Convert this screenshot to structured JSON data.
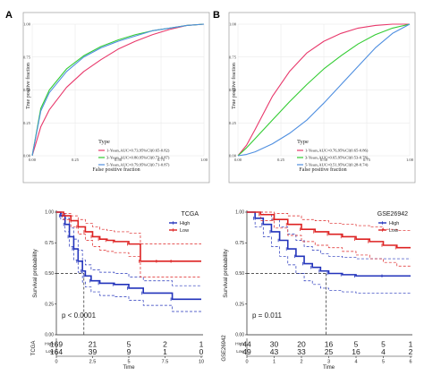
{
  "panel_labels": [
    "A",
    "B"
  ],
  "roc_axis": {
    "xlabel": "False positive fraction",
    "ylabel": "True positive fraction",
    "ticks": [
      "0.00",
      "0.25",
      "0.50",
      "0.75",
      "1.00"
    ]
  },
  "legend_title": "Type",
  "colors": {
    "year1": "#e8386b",
    "year3": "#33cc33",
    "year5": "#4f8fe0",
    "high": "#2233bb",
    "low": "#dd2222"
  },
  "km_axis": {
    "ylabel": "Survival probability",
    "xlabel": "Time",
    "yticks": [
      "0.00",
      "0.25",
      "0.50",
      "0.75",
      "1.00"
    ]
  },
  "risk_rows": [
    "High",
    "Low"
  ],
  "chart_data": [
    {
      "type": "line",
      "panel": "A",
      "xlabel": "False positive fraction",
      "ylabel": "True positive fraction",
      "xlim": [
        0,
        1
      ],
      "ylim": [
        0,
        1
      ],
      "legend_title": "Type",
      "legend_position": "bottom-right",
      "series": [
        {
          "name": "1-Years,AUC=0.73,95%CI(0.65-0.82)",
          "color": "#e8386b",
          "auc": 0.73,
          "x": [
            0,
            0.05,
            0.1,
            0.2,
            0.3,
            0.4,
            0.5,
            0.6,
            0.7,
            0.8,
            0.9,
            1
          ],
          "y": [
            0,
            0.22,
            0.35,
            0.52,
            0.64,
            0.73,
            0.81,
            0.87,
            0.92,
            0.96,
            0.99,
            1
          ]
        },
        {
          "name": "3-Years,AUC=0.80,95%CI(0.73-0.87)",
          "color": "#33cc33",
          "auc": 0.8,
          "x": [
            0,
            0.05,
            0.1,
            0.2,
            0.3,
            0.4,
            0.5,
            0.6,
            0.7,
            0.8,
            0.9,
            1
          ],
          "y": [
            0,
            0.36,
            0.5,
            0.66,
            0.76,
            0.83,
            0.88,
            0.92,
            0.95,
            0.97,
            0.99,
            1
          ]
        },
        {
          "name": "5-Years,AUC=0.79,95%CI(0.71-0.87)",
          "color": "#4f8fe0",
          "auc": 0.79,
          "x": [
            0,
            0.05,
            0.1,
            0.2,
            0.3,
            0.4,
            0.5,
            0.6,
            0.7,
            0.8,
            0.9,
            1
          ],
          "y": [
            0,
            0.34,
            0.48,
            0.64,
            0.75,
            0.82,
            0.87,
            0.91,
            0.95,
            0.97,
            0.99,
            1
          ]
        }
      ]
    },
    {
      "type": "line",
      "panel": "B",
      "xlabel": "False positive fraction",
      "ylabel": "True positive fraction",
      "xlim": [
        0,
        1
      ],
      "ylim": [
        0,
        1
      ],
      "legend_title": "Type",
      "legend_position": "bottom-right",
      "series": [
        {
          "name": "1-Years,AUC=0.76,95%CI(0.65-0.86)",
          "color": "#e8386b",
          "auc": 0.76,
          "x": [
            0,
            0.05,
            0.1,
            0.2,
            0.3,
            0.4,
            0.5,
            0.6,
            0.7,
            0.8,
            0.9,
            1
          ],
          "y": [
            0,
            0.08,
            0.2,
            0.45,
            0.64,
            0.78,
            0.87,
            0.93,
            0.97,
            0.99,
            1,
            1
          ]
        },
        {
          "name": "3-Years,AUC=0.65,95%CI(0.53-0.78)",
          "color": "#33cc33",
          "auc": 0.65,
          "x": [
            0,
            0.05,
            0.1,
            0.2,
            0.3,
            0.4,
            0.5,
            0.6,
            0.7,
            0.8,
            0.9,
            1
          ],
          "y": [
            0,
            0.06,
            0.13,
            0.27,
            0.41,
            0.54,
            0.66,
            0.76,
            0.85,
            0.92,
            0.97,
            1
          ]
        },
        {
          "name": "5-Years,AUC=0.51,95%CI(0.28-0.74)",
          "color": "#4f8fe0",
          "auc": 0.51,
          "x": [
            0,
            0.05,
            0.1,
            0.2,
            0.3,
            0.4,
            0.5,
            0.6,
            0.7,
            0.8,
            0.9,
            1
          ],
          "y": [
            0,
            0.01,
            0.03,
            0.09,
            0.17,
            0.27,
            0.4,
            0.54,
            0.68,
            0.82,
            0.93,
            1
          ]
        }
      ]
    },
    {
      "type": "line",
      "panel": "TCGA",
      "title": "TCGA",
      "xlabel": "Time",
      "ylabel": "Survival probability",
      "xlim": [
        0,
        10
      ],
      "ylim": [
        0,
        1
      ],
      "xticks": [
        "0",
        "2.5",
        "5",
        "7.5",
        "10"
      ],
      "pvalue": "p < 0.0001",
      "median_survival": 1.9,
      "legend_position": "top-right",
      "series": [
        {
          "name": "High",
          "color": "#2233bb",
          "step": true,
          "x": [
            0,
            0.3,
            0.6,
            0.9,
            1.2,
            1.5,
            1.8,
            2.0,
            2.4,
            3.0,
            4.0,
            5.0,
            6.0,
            8.0,
            10
          ],
          "y": [
            1,
            0.97,
            0.9,
            0.8,
            0.7,
            0.6,
            0.52,
            0.48,
            0.44,
            0.42,
            0.41,
            0.38,
            0.34,
            0.29,
            0.29
          ],
          "ci_upper": [
            1,
            0.99,
            0.95,
            0.87,
            0.78,
            0.69,
            0.61,
            0.57,
            0.53,
            0.51,
            0.5,
            0.47,
            0.44,
            0.4,
            0.4
          ],
          "ci_lower": [
            1,
            0.94,
            0.84,
            0.72,
            0.61,
            0.51,
            0.43,
            0.39,
            0.35,
            0.32,
            0.31,
            0.28,
            0.24,
            0.19,
            0.19
          ]
        },
        {
          "name": "Low",
          "color": "#dd2222",
          "step": true,
          "x": [
            0,
            0.5,
            1.0,
            1.5,
            2.0,
            2.5,
            3.0,
            3.5,
            4.0,
            5.0,
            5.8,
            7.0,
            8.0,
            10
          ],
          "y": [
            1,
            0.97,
            0.93,
            0.88,
            0.84,
            0.8,
            0.78,
            0.77,
            0.76,
            0.74,
            0.6,
            0.6,
            0.6,
            0.6
          ],
          "ci_upper": [
            1,
            0.99,
            0.97,
            0.94,
            0.91,
            0.88,
            0.86,
            0.85,
            0.84,
            0.83,
            0.74,
            0.74,
            0.74,
            0.74
          ],
          "ci_lower": [
            1,
            0.94,
            0.88,
            0.82,
            0.77,
            0.72,
            0.69,
            0.68,
            0.67,
            0.64,
            0.47,
            0.47,
            0.47,
            0.47
          ]
        }
      ],
      "risk_table": {
        "times": [
          "0",
          "2.5",
          "5",
          "7.5",
          "10"
        ],
        "label": "TCGA",
        "High": [
          "169",
          "21",
          "5",
          "2",
          "1"
        ],
        "Low": [
          "164",
          "39",
          "9",
          "1",
          "0"
        ]
      }
    },
    {
      "type": "line",
      "panel": "GSE26942",
      "title": "GSE26942",
      "xlabel": "Time",
      "ylabel": "Survival probability",
      "xlim": [
        0,
        6
      ],
      "ylim": [
        0,
        1
      ],
      "xticks": [
        "0",
        "1",
        "2",
        "3",
        "4",
        "5",
        "6"
      ],
      "pvalue": "p = 0.011",
      "median_survival": 2.9,
      "legend_position": "top-right",
      "series": [
        {
          "name": "High",
          "color": "#2233bb",
          "step": true,
          "x": [
            0,
            0.3,
            0.6,
            0.9,
            1.2,
            1.5,
            1.8,
            2.1,
            2.4,
            2.7,
            3.0,
            3.5,
            4.0,
            5.0,
            6.0
          ],
          "y": [
            1,
            0.95,
            0.9,
            0.84,
            0.77,
            0.7,
            0.64,
            0.58,
            0.55,
            0.52,
            0.5,
            0.49,
            0.48,
            0.48,
            0.48
          ],
          "ci_upper": [
            1,
            1,
            0.98,
            0.94,
            0.88,
            0.82,
            0.77,
            0.72,
            0.69,
            0.66,
            0.64,
            0.63,
            0.62,
            0.62,
            0.62
          ],
          "ci_lower": [
            1,
            0.88,
            0.8,
            0.72,
            0.64,
            0.57,
            0.5,
            0.44,
            0.41,
            0.38,
            0.36,
            0.35,
            0.34,
            0.34,
            0.34
          ]
        },
        {
          "name": "Low",
          "color": "#dd2222",
          "step": true,
          "x": [
            0,
            0.5,
            1.0,
            1.5,
            2.0,
            2.5,
            3.0,
            3.5,
            4.0,
            4.5,
            5.0,
            5.5,
            6.0
          ],
          "y": [
            1,
            0.98,
            0.94,
            0.9,
            0.86,
            0.84,
            0.82,
            0.8,
            0.78,
            0.76,
            0.73,
            0.71,
            0.71
          ],
          "ci_upper": [
            1,
            1,
            0.99,
            0.97,
            0.94,
            0.93,
            0.91,
            0.9,
            0.89,
            0.88,
            0.86,
            0.85,
            0.85
          ],
          "ci_lower": [
            1,
            0.93,
            0.87,
            0.81,
            0.76,
            0.73,
            0.71,
            0.68,
            0.65,
            0.62,
            0.59,
            0.56,
            0.56
          ]
        }
      ],
      "risk_table": {
        "times": [
          "0",
          "1",
          "2",
          "3",
          "4",
          "5",
          "6"
        ],
        "label": "GSE26942",
        "High": [
          "44",
          "30",
          "20",
          "16",
          "5",
          "5",
          "1"
        ],
        "Low": [
          "49",
          "43",
          "33",
          "25",
          "16",
          "4",
          "2"
        ]
      }
    }
  ]
}
